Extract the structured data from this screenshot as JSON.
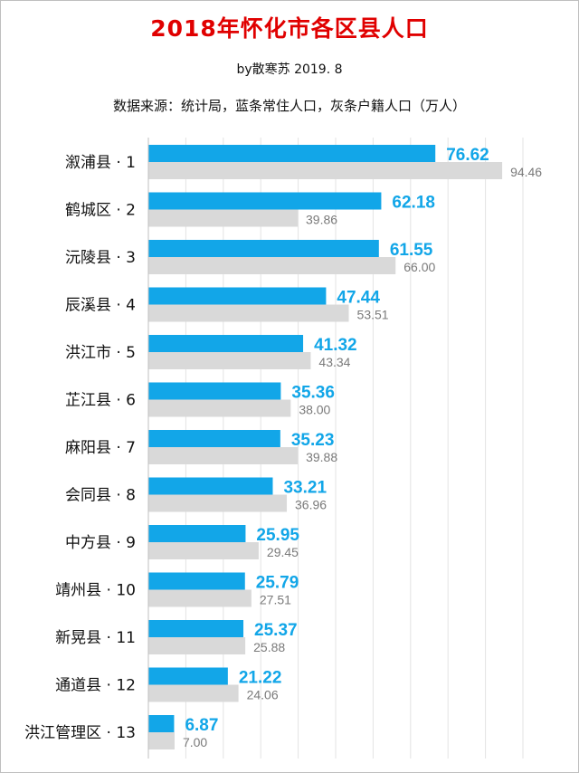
{
  "chart_data": {
    "type": "bar",
    "orientation": "horizontal",
    "title": "2018年怀化市各区县人口",
    "subtitle": "by散寒苏 2019. 8",
    "note": "数据来源：统计局，蓝条常住人口，灰条户籍人口（万人）",
    "categories": [
      "溆浦县 · 1",
      "鹤城区 · 2",
      "沅陵县 · 3",
      "辰溪县 · 4",
      "洪江市 · 5",
      "芷江县 · 6",
      "麻阳县 · 7",
      "会同县 · 8",
      "中方县 · 9",
      "靖州县 · 10",
      "新晃县 · 11",
      "通道县 · 12",
      "洪江管理区 · 13"
    ],
    "series": [
      {
        "color": "#12a6e8",
        "values": [
          76.62,
          62.18,
          61.55,
          47.44,
          41.32,
          35.36,
          35.23,
          33.21,
          25.95,
          25.79,
          25.37,
          21.22,
          6.87
        ],
        "labels": [
          "76.62",
          "62.18",
          "61.55",
          "47.44",
          "41.32",
          "35.36",
          "35.23",
          "33.21",
          "25.95",
          "25.79",
          "25.37",
          "21.22",
          "6.87"
        ]
      },
      {
        "color": "#d9d9d9",
        "values": [
          94.46,
          39.86,
          66.0,
          53.51,
          43.34,
          38.0,
          39.88,
          36.96,
          29.45,
          27.51,
          25.88,
          24.06,
          7.0
        ],
        "labels": [
          "94.46",
          "39.86",
          "66.00",
          "53.51",
          "43.34",
          "38.00",
          "39.88",
          "36.96",
          "29.45",
          "27.51",
          "25.88",
          "24.06",
          "7.00"
        ]
      }
    ],
    "xlim": [
      0,
      100
    ],
    "grid": true,
    "legend": "none"
  }
}
